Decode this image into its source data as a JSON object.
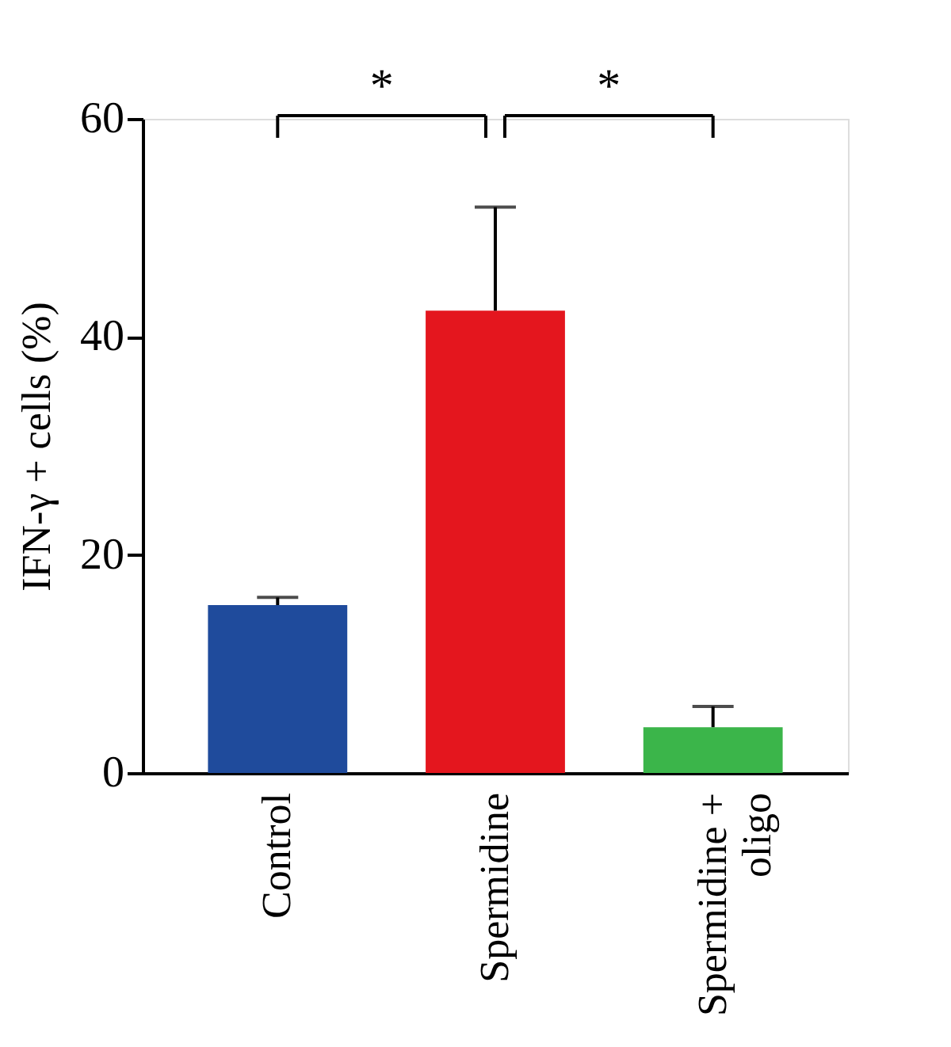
{
  "chart_data": {
    "type": "bar",
    "ylabel": "IFN-γ + cells (%)",
    "categories": [
      "Control",
      "Spermidine",
      "Spermidine + oligo"
    ],
    "values": [
      15.4,
      42.4,
      4.2
    ],
    "colors": [
      "#1f4b9c",
      "#e4161e",
      "#3bb54a"
    ],
    "errors": [
      [
        15.4,
        16.1
      ],
      [
        42.4,
        51.9
      ],
      [
        4.2,
        6.1
      ]
    ],
    "ylim": [
      0,
      60
    ],
    "yticks": [
      0,
      20,
      40,
      60
    ],
    "grid": false,
    "legend": false,
    "annotations": [
      "*",
      "*"
    ]
  }
}
